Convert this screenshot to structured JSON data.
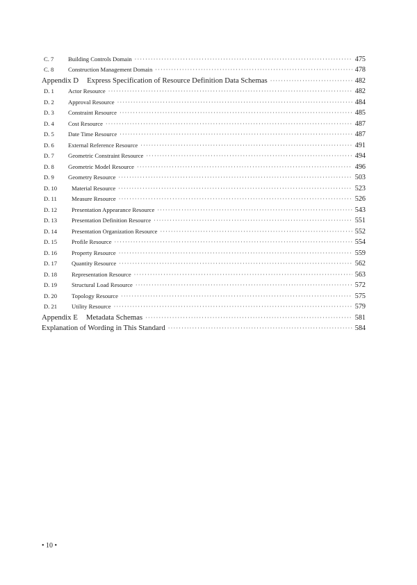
{
  "toc": [
    {
      "level": "sub",
      "num": "C. 7",
      "title": "Building Controls Domain",
      "page": "475"
    },
    {
      "level": "sub",
      "num": "C. 8",
      "title": "Construction Management Domain",
      "page": "478"
    },
    {
      "level": "top",
      "num": "Appendix D",
      "title": "Express Specification of Resource Definition Data Schemas",
      "page": "482"
    },
    {
      "level": "sub",
      "num": "D. 1",
      "title": "Actor Resource",
      "page": "482"
    },
    {
      "level": "sub",
      "num": "D. 2",
      "title": "Approval Resource",
      "page": "484"
    },
    {
      "level": "sub",
      "num": "D. 3",
      "title": "Constraint Resource",
      "page": "485"
    },
    {
      "level": "sub",
      "num": "D. 4",
      "title": "Cost Resource",
      "page": "487"
    },
    {
      "level": "sub",
      "num": "D. 5",
      "title": "Date Time Resource",
      "page": "487"
    },
    {
      "level": "sub",
      "num": "D. 6",
      "title": "External Reference Resource",
      "page": "491"
    },
    {
      "level": "sub",
      "num": "D. 7",
      "title": "Geometric Constraint Resource",
      "page": "494"
    },
    {
      "level": "sub",
      "num": "D. 8",
      "title": "Geometric Model Resource",
      "page": "496"
    },
    {
      "level": "sub",
      "num": "D. 9",
      "title": "Geometry Resource",
      "page": "503"
    },
    {
      "level": "sub",
      "num": "D. 10",
      "title": "Material Resource",
      "page": "523"
    },
    {
      "level": "sub",
      "num": "D. 11",
      "title": "Measure Resource",
      "page": "526"
    },
    {
      "level": "sub",
      "num": "D. 12",
      "title": "Presentation Appearance Resource",
      "page": "543"
    },
    {
      "level": "sub",
      "num": "D. 13",
      "title": "Presentation Definition Resource",
      "page": "551"
    },
    {
      "level": "sub",
      "num": "D. 14",
      "title": "Presentation Organization Resource",
      "page": "552"
    },
    {
      "level": "sub",
      "num": "D. 15",
      "title": "Profile Resource",
      "page": "554"
    },
    {
      "level": "sub",
      "num": "D. 16",
      "title": "Property Resource",
      "page": "559"
    },
    {
      "level": "sub",
      "num": "D. 17",
      "title": "Quantity Resource",
      "page": "562"
    },
    {
      "level": "sub",
      "num": "D. 18",
      "title": "Representation Resource",
      "page": "563"
    },
    {
      "level": "sub",
      "num": "D. 19",
      "title": "Structural Load Resource",
      "page": "572"
    },
    {
      "level": "sub",
      "num": "D. 20",
      "title": "Topology Resource",
      "page": "575"
    },
    {
      "level": "sub",
      "num": "D. 21",
      "title": "Utility Resource",
      "page": "579"
    },
    {
      "level": "top",
      "num": "Appendix E",
      "title": "Metadata Schemas",
      "page": "581"
    },
    {
      "level": "top",
      "num": "",
      "title": "Explanation of Wording in This Standard",
      "page": "584"
    }
  ],
  "footer": {
    "page_number": "• 10 •"
  }
}
